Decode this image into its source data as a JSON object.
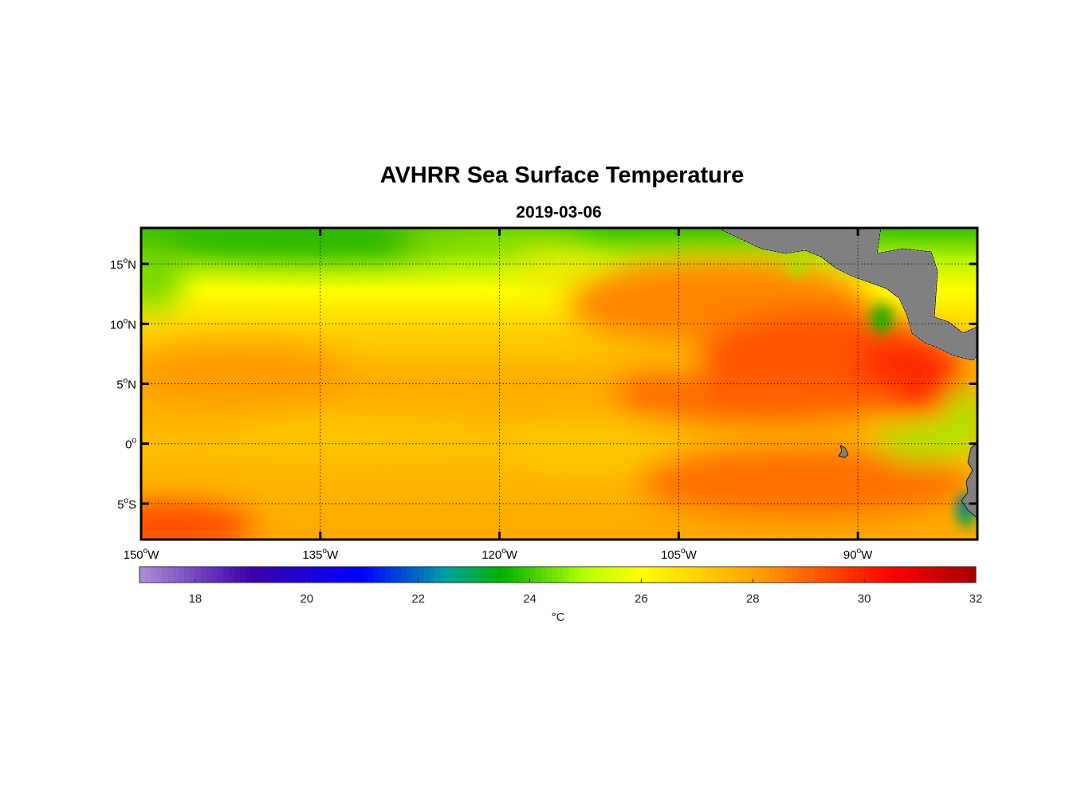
{
  "title": "AVHRR Sea Surface Temperature",
  "subtitle": "2019-03-06",
  "map": {
    "lon_range": [
      -150,
      -80
    ],
    "lat_range": [
      -8,
      18
    ],
    "lon_ticks": [
      {
        "value": -150,
        "num": "150",
        "deg": "o",
        "hem": "W"
      },
      {
        "value": -135,
        "num": "135",
        "deg": "o",
        "hem": "W"
      },
      {
        "value": -120,
        "num": "120",
        "deg": "o",
        "hem": "W"
      },
      {
        "value": -105,
        "num": "105",
        "deg": "o",
        "hem": "W"
      },
      {
        "value": -90,
        "num": "90",
        "deg": "o",
        "hem": "W"
      }
    ],
    "lat_ticks": [
      {
        "value": 15,
        "num": "15",
        "deg": "o",
        "hem": "N"
      },
      {
        "value": 10,
        "num": "10",
        "deg": "o",
        "hem": "N"
      },
      {
        "value": 5,
        "num": "5",
        "deg": "o",
        "hem": "N"
      },
      {
        "value": 0,
        "num": "0",
        "deg": "o",
        "hem": ""
      },
      {
        "value": -5,
        "num": "5",
        "deg": "o",
        "hem": "S"
      }
    ],
    "land_color": "#808080",
    "grid": "dotted"
  },
  "colorbar": {
    "range": [
      17,
      32
    ],
    "ticks": [
      "18",
      "20",
      "22",
      "24",
      "26",
      "28",
      "30",
      "32"
    ],
    "tick_values": [
      18,
      20,
      22,
      24,
      26,
      28,
      30,
      32
    ],
    "unit_label": "°C",
    "colormap": [
      {
        "t": 17,
        "color": "#b08ed6"
      },
      {
        "t": 19,
        "color": "#3a00a8"
      },
      {
        "t": 21,
        "color": "#0000ff"
      },
      {
        "t": 22.5,
        "color": "#00a0a0"
      },
      {
        "t": 23.5,
        "color": "#00b000"
      },
      {
        "t": 25,
        "color": "#b8ff00"
      },
      {
        "t": 26,
        "color": "#ffff00"
      },
      {
        "t": 28,
        "color": "#ffa500"
      },
      {
        "t": 30.5,
        "color": "#ff0000"
      },
      {
        "t": 32,
        "color": "#a50000"
      }
    ]
  }
}
